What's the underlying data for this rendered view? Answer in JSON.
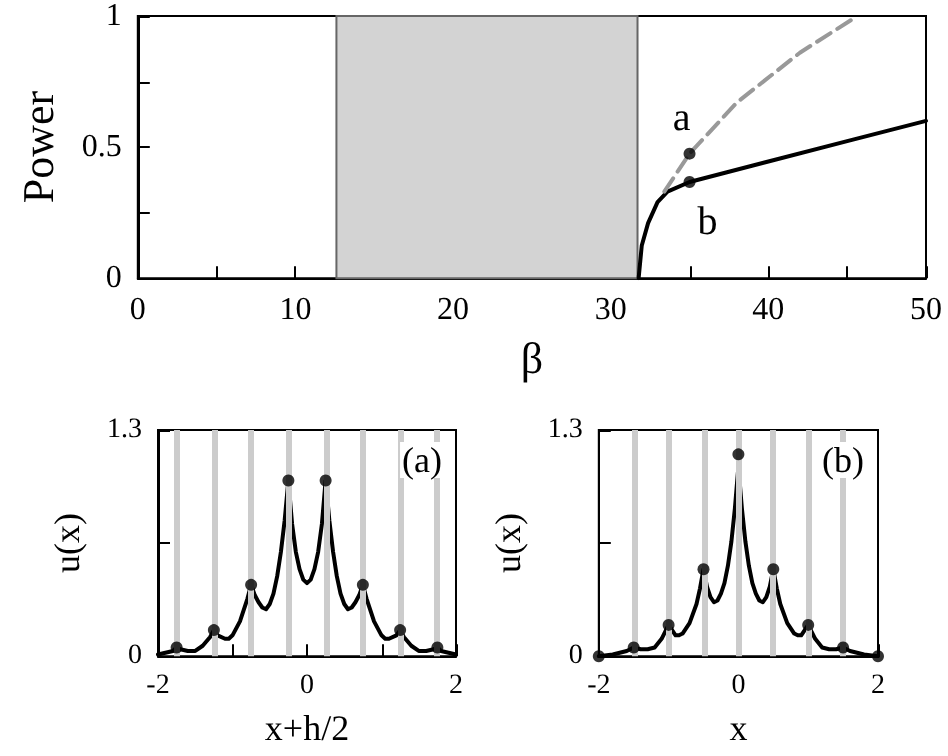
{
  "chart_data": [
    {
      "type": "line",
      "xlabel": "β",
      "ylabel": "Power",
      "xlim": [
        0,
        50
      ],
      "ylim": [
        0,
        1
      ],
      "xticks": [
        0,
        {
          "value": 5,
          "label": null
        },
        10,
        {
          "value": 15,
          "label": null
        },
        20,
        {
          "value": 25,
          "label": null
        },
        30,
        {
          "value": 35,
          "label": null
        },
        40,
        {
          "value": 45,
          "label": null
        },
        50
      ],
      "yticks": [
        0,
        {
          "value": 0.25,
          "label": null
        },
        0.5,
        {
          "value": 0.75,
          "label": null
        },
        1
      ],
      "marker": "none",
      "bands": [
        {
          "axis": "x",
          "from": 12.6,
          "to": 31.7,
          "color": "#d3d3d3"
        }
      ],
      "series": [
        {
          "type": "line",
          "color": "#000000",
          "line_style": "solid",
          "x": [
            31.77,
            31.97,
            32.37,
            32.97,
            33.6,
            35,
            40,
            45,
            50
          ],
          "values": [
            0,
            0.125,
            0.21,
            0.29,
            0.33,
            0.367,
            0.445,
            0.523,
            0.6
          ]
        },
        {
          "type": "line",
          "color": "#999999",
          "line_style": "dashed",
          "x": [
            33.4,
            35,
            38,
            42,
            45.65
          ],
          "values": [
            0.33,
            0.475,
            0.67,
            0.86,
            1
          ]
        },
        {
          "type": "scatter",
          "color": "#000000",
          "marker": "circle",
          "x": [
            35,
            35
          ],
          "values": [
            0.475,
            0.367
          ]
        }
      ],
      "annotations": [
        {
          "text": "a",
          "x": 35,
          "y": 0.475
        },
        {
          "text": "b",
          "x": 35,
          "y": 0.367
        }
      ]
    },
    {
      "type": "line",
      "xlabel": "x+h/2",
      "ylabel": "u(x)",
      "xlim": [
        -2,
        2
      ],
      "ylim": [
        0,
        1.3
      ],
      "xticks": [
        -2,
        {
          "value": -1,
          "label": null
        },
        0,
        {
          "value": 1,
          "label": null
        },
        2
      ],
      "yticks": [
        0,
        {
          "value": 0.65,
          "label": null
        },
        1.3
      ],
      "marker": "none",
      "ref_lines": [
        {
          "axis": "x",
          "value": -1.75,
          "color": "#cccccc"
        },
        {
          "axis": "x",
          "value": -1.25,
          "color": "#cccccc"
        },
        {
          "axis": "x",
          "value": -0.75,
          "color": "#cccccc"
        },
        {
          "axis": "x",
          "value": -0.25,
          "color": "#cccccc"
        },
        {
          "axis": "x",
          "value": 0.25,
          "color": "#cccccc"
        },
        {
          "axis": "x",
          "value": 0.75,
          "color": "#cccccc"
        },
        {
          "axis": "x",
          "value": 1.25,
          "color": "#cccccc"
        },
        {
          "axis": "x",
          "value": 1.75,
          "color": "#cccccc"
        }
      ],
      "series": [
        {
          "type": "line",
          "color": "#000000",
          "line_style": "solid",
          "x": [
            -2,
            -1.9,
            -1.8,
            -1.75,
            -1.7,
            -1.6,
            -1.5,
            -1.4,
            -1.3,
            -1.25,
            -1.2,
            -1.1,
            -1.05,
            -1,
            -0.9,
            -0.8,
            -0.75,
            -0.7,
            -0.65,
            -0.6,
            -0.55,
            -0.5,
            -0.45,
            -0.4,
            -0.35,
            -0.3,
            -0.25,
            -0.2,
            -0.15,
            -0.1,
            -0.05,
            0,
            0.05,
            0.1,
            0.15,
            0.2,
            0.25,
            0.3,
            0.35,
            0.4,
            0.45,
            0.5,
            0.55,
            0.6,
            0.65,
            0.7,
            0.75,
            0.8,
            0.9,
            1,
            1.05,
            1.1,
            1.2,
            1.25,
            1.3,
            1.4,
            1.5,
            1.6,
            1.7,
            1.75,
            1.8,
            1.9,
            2
          ],
          "values": [
            0.01,
            0.02,
            0.03,
            0.05,
            0.04,
            0.03,
            0.03,
            0.06,
            0.11,
            0.15,
            0.12,
            0.1,
            0.1,
            0.12,
            0.2,
            0.33,
            0.41,
            0.35,
            0.31,
            0.28,
            0.27,
            0.3,
            0.36,
            0.46,
            0.6,
            0.78,
            1.01,
            0.76,
            0.6,
            0.5,
            0.44,
            0.42,
            0.44,
            0.5,
            0.6,
            0.76,
            1.01,
            0.78,
            0.6,
            0.46,
            0.36,
            0.3,
            0.27,
            0.28,
            0.31,
            0.35,
            0.41,
            0.33,
            0.2,
            0.12,
            0.1,
            0.1,
            0.12,
            0.15,
            0.11,
            0.06,
            0.03,
            0.03,
            0.04,
            0.05,
            0.03,
            0.02,
            0.01
          ]
        },
        {
          "type": "scatter",
          "color": "#000000",
          "marker": "circle",
          "x": [
            -1.75,
            -1.25,
            -0.75,
            -0.25,
            0.25,
            0.75,
            1.25,
            1.75
          ],
          "values": [
            0.05,
            0.15,
            0.41,
            1.01,
            1.01,
            0.41,
            0.15,
            0.05
          ]
        }
      ],
      "annotations": [
        "(a)"
      ]
    },
    {
      "type": "line",
      "xlabel": "x",
      "ylabel": "u(x)",
      "xlim": [
        -2,
        2
      ],
      "ylim": [
        0,
        1.3
      ],
      "xticks": [
        -2,
        {
          "value": -1,
          "label": null
        },
        0,
        {
          "value": 1,
          "label": null
        },
        2
      ],
      "yticks": [
        0,
        {
          "value": 0.65,
          "label": null
        },
        1.3
      ],
      "tick_labels": "xy",
      "marker": "none",
      "ref_lines": [
        {
          "axis": "x",
          "value": -1.5,
          "color": "#cccccc"
        },
        {
          "axis": "x",
          "value": -1,
          "color": "#cccccc"
        },
        {
          "axis": "x",
          "value": -0.5,
          "color": "#cccccc"
        },
        {
          "axis": "x",
          "value": 0,
          "color": "#cccccc"
        },
        {
          "axis": "x",
          "value": 0.5,
          "color": "#cccccc"
        },
        {
          "axis": "x",
          "value": 1,
          "color": "#cccccc"
        },
        {
          "axis": "x",
          "value": 1.5,
          "color": "#cccccc"
        }
      ],
      "series": [
        {
          "type": "line",
          "color": "#000000",
          "line_style": "solid",
          "x": [
            -2,
            -1.8,
            -1.7,
            -1.6,
            -1.5,
            -1.4,
            -1.3,
            -1.2,
            -1.1,
            -1.05,
            -1,
            -0.95,
            -0.9,
            -0.85,
            -0.8,
            -0.7,
            -0.6,
            -0.55,
            -0.5,
            -0.45,
            -0.4,
            -0.35,
            -0.3,
            -0.25,
            -0.2,
            -0.15,
            -0.1,
            -0.05,
            0,
            0.05,
            0.1,
            0.15,
            0.2,
            0.25,
            0.3,
            0.35,
            0.4,
            0.45,
            0.5,
            0.55,
            0.6,
            0.7,
            0.8,
            0.85,
            0.9,
            0.95,
            1,
            1.05,
            1.1,
            1.2,
            1.3,
            1.4,
            1.5,
            1.6,
            1.7,
            1.8,
            2
          ],
          "values": [
            0,
            0.01,
            0.02,
            0.03,
            0.05,
            0.04,
            0.04,
            0.05,
            0.1,
            0.14,
            0.18,
            0.15,
            0.12,
            0.12,
            0.13,
            0.19,
            0.3,
            0.39,
            0.5,
            0.4,
            0.34,
            0.31,
            0.32,
            0.36,
            0.42,
            0.52,
            0.66,
            0.85,
            1.09,
            0.85,
            0.66,
            0.52,
            0.42,
            0.36,
            0.32,
            0.31,
            0.34,
            0.4,
            0.5,
            0.39,
            0.3,
            0.19,
            0.13,
            0.12,
            0.12,
            0.15,
            0.18,
            0.14,
            0.1,
            0.05,
            0.04,
            0.04,
            0.05,
            0.03,
            0.02,
            0.01,
            0
          ]
        },
        {
          "type": "scatter",
          "color": "#000000",
          "marker": "circle",
          "x": [
            -2,
            -1.5,
            -1,
            -0.5,
            0,
            0.5,
            1,
            1.5,
            2
          ],
          "values": [
            0,
            0.05,
            0.18,
            0.5,
            1.16,
            0.5,
            0.18,
            0.05,
            0
          ]
        }
      ],
      "annotations": [
        "(b)"
      ]
    }
  ]
}
